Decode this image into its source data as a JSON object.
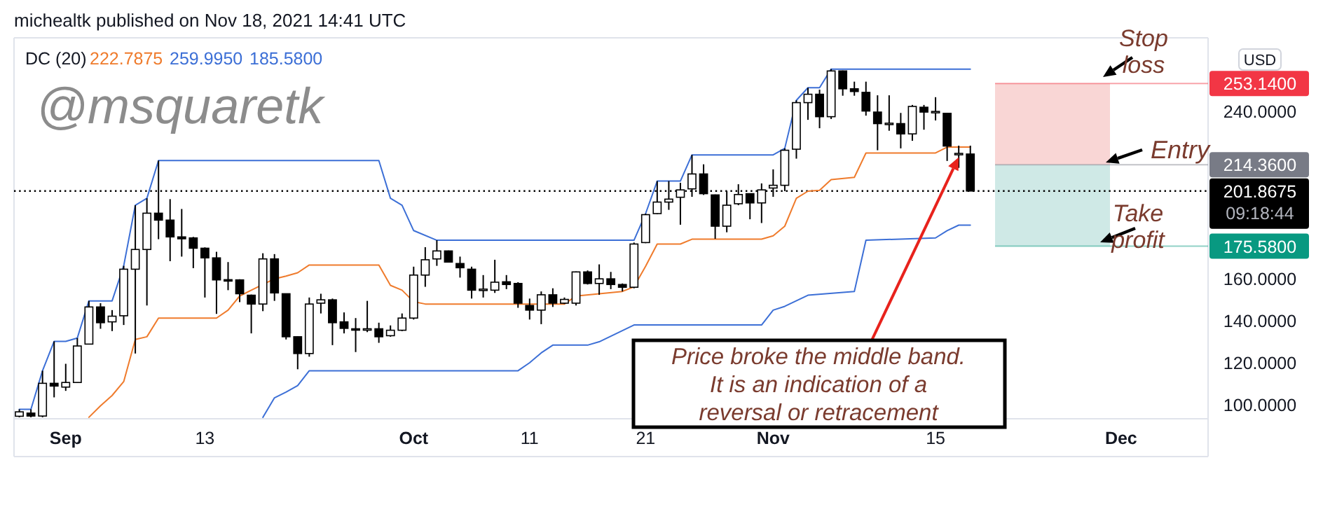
{
  "chart_data": {
    "type": "candlestick",
    "title": "michealtk published on Nov 18, 2021 14:41 UTC",
    "x": [
      "2021-08-28",
      "2021-08-29",
      "2021-08-30",
      "2021-08-31",
      "2021-09-01",
      "2021-09-02",
      "2021-09-03",
      "2021-09-04",
      "2021-09-05",
      "2021-09-06",
      "2021-09-07",
      "2021-09-08",
      "2021-09-09",
      "2021-09-10",
      "2021-09-11",
      "2021-09-12",
      "2021-09-13",
      "2021-09-14",
      "2021-09-15",
      "2021-09-16",
      "2021-09-17",
      "2021-09-18",
      "2021-09-19",
      "2021-09-20",
      "2021-09-21",
      "2021-09-22",
      "2021-09-23",
      "2021-09-24",
      "2021-09-25",
      "2021-09-26",
      "2021-09-27",
      "2021-09-28",
      "2021-09-29",
      "2021-09-30",
      "2021-10-01",
      "2021-10-02",
      "2021-10-03",
      "2021-10-04",
      "2021-10-05",
      "2021-10-06",
      "2021-10-07",
      "2021-10-08",
      "2021-10-09",
      "2021-10-10",
      "2021-10-11",
      "2021-10-12",
      "2021-10-13",
      "2021-10-14",
      "2021-10-15",
      "2021-10-16",
      "2021-10-17",
      "2021-10-18",
      "2021-10-19",
      "2021-10-20",
      "2021-10-21",
      "2021-10-22",
      "2021-10-23",
      "2021-10-24",
      "2021-10-25",
      "2021-10-26",
      "2021-10-27",
      "2021-10-28",
      "2021-10-29",
      "2021-10-30",
      "2021-10-31",
      "2021-11-01",
      "2021-11-02",
      "2021-11-03",
      "2021-11-04",
      "2021-11-05",
      "2021-11-06",
      "2021-11-07",
      "2021-11-08",
      "2021-11-09",
      "2021-11-10",
      "2021-11-11",
      "2021-11-12",
      "2021-11-13",
      "2021-11-14",
      "2021-11-15",
      "2021-11-16",
      "2021-11-17",
      "2021-11-18"
    ],
    "ohlc": [
      [
        94.5,
        97.8,
        94.0,
        96.6
      ],
      [
        96.0,
        97.8,
        94.0,
        94.6
      ],
      [
        94.6,
        116.2,
        94.0,
        110.2
      ],
      [
        110.2,
        130.2,
        103.5,
        108.9
      ],
      [
        108.4,
        119.5,
        106.6,
        110.6
      ],
      [
        110.6,
        131.8,
        110.4,
        128.0
      ],
      [
        128.9,
        149.5,
        128.7,
        146.6
      ],
      [
        146.6,
        148.4,
        136.2,
        139.1
      ],
      [
        139.5,
        145.1,
        135.1,
        142.2
      ],
      [
        142.4,
        166.2,
        138.0,
        164.6
      ],
      [
        164.6,
        195.1,
        124.4,
        174.0
      ],
      [
        174.0,
        198.4,
        147.3,
        191.3
      ],
      [
        191.3,
        216.4,
        178.9,
        188.0
      ],
      [
        188.0,
        198.0,
        168.4,
        180.0
      ],
      [
        180.0,
        193.3,
        170.6,
        179.1
      ],
      [
        179.5,
        180.0,
        165.1,
        174.6
      ],
      [
        174.6,
        175.0,
        151.1,
        170.0
      ],
      [
        170.0,
        172.9,
        143.3,
        159.5
      ],
      [
        159.6,
        168.0,
        154.6,
        159.4
      ],
      [
        159.5,
        159.8,
        148.9,
        152.9
      ],
      [
        152.2,
        152.5,
        134.0,
        148.0
      ],
      [
        148.0,
        172.2,
        144.6,
        169.5
      ],
      [
        169.5,
        171.8,
        149.5,
        153.3
      ],
      [
        152.9,
        153.0,
        131.1,
        132.4
      ],
      [
        132.4,
        132.6,
        116.9,
        124.4
      ],
      [
        124.4,
        151.1,
        122.9,
        148.0
      ],
      [
        148.4,
        152.9,
        143.5,
        150.0
      ],
      [
        150.0,
        150.6,
        128.4,
        139.1
      ],
      [
        139.5,
        144.0,
        134.0,
        136.4
      ],
      [
        136.2,
        141.3,
        125.1,
        136.0
      ],
      [
        136.0,
        149.5,
        134.6,
        136.2
      ],
      [
        136.2,
        139.1,
        129.5,
        132.4
      ],
      [
        132.9,
        137.8,
        132.4,
        135.5
      ],
      [
        135.5,
        143.5,
        135.1,
        141.3
      ],
      [
        141.3,
        165.8,
        140.6,
        161.8
      ],
      [
        161.8,
        175.1,
        156.2,
        169.1
      ],
      [
        169.5,
        178.4,
        166.2,
        173.3
      ],
      [
        173.3,
        173.5,
        167.8,
        168.0
      ],
      [
        167.3,
        170.6,
        160.6,
        165.3
      ],
      [
        164.6,
        165.8,
        150.6,
        154.6
      ],
      [
        154.6,
        161.8,
        151.1,
        155.1
      ],
      [
        154.6,
        169.1,
        153.3,
        158.4
      ],
      [
        158.6,
        161.8,
        155.1,
        157.3
      ],
      [
        157.8,
        158.4,
        146.2,
        148.4
      ],
      [
        147.3,
        150.6,
        140.6,
        145.1
      ],
      [
        145.1,
        154.0,
        138.4,
        152.4
      ],
      [
        152.4,
        155.5,
        146.6,
        148.4
      ],
      [
        148.4,
        151.1,
        148.0,
        150.2
      ],
      [
        148.4,
        163.5,
        147.3,
        163.3
      ],
      [
        163.3,
        164.0,
        157.3,
        157.8
      ],
      [
        157.8,
        166.9,
        152.4,
        160.0
      ],
      [
        160.0,
        163.3,
        155.1,
        157.3
      ],
      [
        157.3,
        157.8,
        154.0,
        156.0
      ],
      [
        156.0,
        177.3,
        155.5,
        176.6
      ],
      [
        177.3,
        191.1,
        177.0,
        190.6
      ],
      [
        191.1,
        206.6,
        190.8,
        196.6
      ],
      [
        196.6,
        206.6,
        192.9,
        198.0
      ],
      [
        198.9,
        205.8,
        185.8,
        202.4
      ],
      [
        202.9,
        219.1,
        199.1,
        210.0
      ],
      [
        210.0,
        214.6,
        200.0,
        200.6
      ],
      [
        200.0,
        200.2,
        179.1,
        185.1
      ],
      [
        185.1,
        201.8,
        182.2,
        195.1
      ],
      [
        195.8,
        205.1,
        195.1,
        200.2
      ],
      [
        200.6,
        200.8,
        188.4,
        196.2
      ],
      [
        196.2,
        205.5,
        186.6,
        202.4
      ],
      [
        203.3,
        212.2,
        199.1,
        204.6
      ],
      [
        204.6,
        222.2,
        201.8,
        221.3
      ],
      [
        221.8,
        245.1,
        217.3,
        244.0
      ],
      [
        244.0,
        251.1,
        235.8,
        248.0
      ],
      [
        248.0,
        250.2,
        231.8,
        237.3
      ],
      [
        237.3,
        260.0,
        236.2,
        259.1
      ],
      [
        259.1,
        259.3,
        247.3,
        250.6
      ],
      [
        250.6,
        254.0,
        247.3,
        249.3
      ],
      [
        248.9,
        254.0,
        237.8,
        240.0
      ],
      [
        239.5,
        247.5,
        221.3,
        234.0
      ],
      [
        234.0,
        247.5,
        230.6,
        234.2
      ],
      [
        234.0,
        239.1,
        222.2,
        229.1
      ],
      [
        229.1,
        242.9,
        225.8,
        242.2
      ],
      [
        241.8,
        242.9,
        231.1,
        239.5
      ],
      [
        239.5,
        246.6,
        235.5,
        239.8
      ],
      [
        238.9,
        239.1,
        216.2,
        223.3
      ],
      [
        219.5,
        223.5,
        212.9,
        219.8
      ],
      [
        219.5,
        223.5,
        201.8675,
        201.8675
      ]
    ],
    "series": [
      {
        "type": "line",
        "color": "#ef7b2c",
        "x": [
          "2021-09-03",
          "2021-09-04",
          "2021-09-05",
          "2021-09-06",
          "2021-09-07",
          "2021-09-08",
          "2021-09-09",
          "2021-09-14",
          "2021-09-15",
          "2021-09-16",
          "2021-09-17",
          "2021-09-19",
          "2021-09-20",
          "2021-09-21",
          "2021-09-22",
          "2021-09-28",
          "2021-09-29",
          "2021-09-30",
          "2021-10-01",
          "2021-10-02",
          "2021-10-14",
          "2021-10-15",
          "2021-10-19",
          "2021-10-20",
          "2021-10-21",
          "2021-10-22",
          "2021-10-24",
          "2021-10-25",
          "2021-10-31",
          "2021-11-01",
          "2021-11-02",
          "2021-11-03",
          "2021-11-04",
          "2021-11-05",
          "2021-11-06",
          "2021-11-08",
          "2021-11-09",
          "2021-11-15",
          "2021-11-16",
          "2021-11-18"
        ],
        "values": [
          94.0,
          99.5,
          104.4,
          111.0,
          131.1,
          132.4,
          141.3,
          141.3,
          145.1,
          151.8,
          154.6,
          160.0,
          161.3,
          162.9,
          166.6,
          166.6,
          156.9,
          154.6,
          149.1,
          148.0,
          148.0,
          151.8,
          154.0,
          156.2,
          166.0,
          176.6,
          176.6,
          178.9,
          178.9,
          180.5,
          185.1,
          198.4,
          201.8,
          202.2,
          207.3,
          208.4,
          220.0,
          220.0,
          222.8,
          222.8
        ]
      },
      {
        "type": "line",
        "color": "#3c6fd6",
        "x": [
          "2021-08-28",
          "2021-08-29",
          "2021-08-30",
          "2021-08-31",
          "2021-09-01",
          "2021-09-02",
          "2021-09-03",
          "2021-09-05",
          "2021-09-06",
          "2021-09-07",
          "2021-09-08",
          "2021-09-09",
          "2021-09-28",
          "2021-09-29",
          "2021-09-30",
          "2021-10-01",
          "2021-10-03",
          "2021-10-20",
          "2021-10-21",
          "2021-10-22",
          "2021-10-24",
          "2021-10-25",
          "2021-11-01",
          "2021-11-02",
          "2021-11-03",
          "2021-11-04",
          "2021-11-05",
          "2021-11-06",
          "2021-11-18"
        ],
        "values": [
          97.8,
          97.8,
          116.2,
          130.2,
          130.2,
          131.8,
          149.5,
          149.5,
          166.2,
          195.1,
          198.4,
          216.4,
          216.4,
          198.4,
          195.1,
          183.0,
          178.4,
          178.4,
          191.1,
          206.6,
          206.6,
          219.1,
          219.1,
          222.2,
          245.1,
          251.1,
          251.1,
          260.0,
          260.0
        ]
      },
      {
        "type": "line",
        "color": "#3c6fd6",
        "x": [
          "2021-09-18",
          "2021-09-19",
          "2021-09-20",
          "2021-09-21",
          "2021-09-22",
          "2021-10-10",
          "2021-10-11",
          "2021-10-12",
          "2021-10-13",
          "2021-10-16",
          "2021-10-17",
          "2021-10-20",
          "2021-10-31",
          "2021-11-01",
          "2021-11-02",
          "2021-11-04",
          "2021-11-08",
          "2021-11-09",
          "2021-11-15",
          "2021-11-16",
          "2021-11-17",
          "2021-11-18"
        ],
        "values": [
          94.0,
          103.3,
          106.0,
          109.1,
          116.2,
          116.2,
          120.0,
          124.7,
          128.4,
          128.4,
          130.0,
          138.0,
          138.0,
          145.1,
          146.9,
          152.2,
          154.0,
          178.4,
          179.5,
          183.0,
          185.6,
          185.6
        ]
      }
    ],
    "xlim": [
      "2021-08-27T13:00",
      "2021-12-08T12:00"
    ],
    "xticks": [
      {
        "value": "2021-09-01",
        "label": "Sep"
      },
      {
        "value": "2021-09-13",
        "label": "13"
      },
      {
        "value": "2021-10-01",
        "label": "Oct"
      },
      {
        "value": "2021-10-11",
        "label": "11"
      },
      {
        "value": "2021-10-21",
        "label": "21"
      },
      {
        "value": "2021-11-01",
        "label": "Nov"
      },
      {
        "value": "2021-11-15",
        "label": "15"
      },
      {
        "value": "2021-12-01",
        "label": "Dec"
      }
    ],
    "ylim": [
      93.3,
      274.9
    ],
    "yticks": [
      {
        "value": 100,
        "label": "100.0000"
      },
      {
        "value": 120,
        "label": "120.0000"
      },
      {
        "value": 140,
        "label": "140.0000"
      },
      {
        "value": 160,
        "label": "160.0000"
      },
      {
        "value": 240,
        "label": "240.0000"
      }
    ],
    "bands": [
      {
        "axis": "y",
        "from": 214.36,
        "to": 253.14,
        "color": "#f9d6d5"
      },
      {
        "axis": "y",
        "from": 175.58,
        "to": 214.36,
        "color": "#cfe9e6"
      }
    ],
    "ref_lines": [
      {
        "axis": "y",
        "value": 253.14,
        "label": "253.1400",
        "color": "#f23645"
      },
      {
        "axis": "y",
        "value": 214.36,
        "label": "214.3600",
        "color": "#787b86"
      },
      {
        "axis": "y",
        "value": 201.8675,
        "label": "201.8675",
        "color": "#000000",
        "line_style": "dotted"
      },
      {
        "axis": "y",
        "value": 175.58,
        "label": "175.5800",
        "color": "#089981"
      }
    ],
    "annotations": [
      "DC (20)",
      "222.7875",
      "259.9950",
      "185.5800",
      "@msquaretk",
      "Stop loss",
      "Entry",
      "Take profit",
      {
        "text": "Price broke the middle band. It is an indication of a reversal or retracement",
        "x": "2021-11-17",
        "y": 218
      },
      "USD",
      "09:18:44"
    ]
  }
}
